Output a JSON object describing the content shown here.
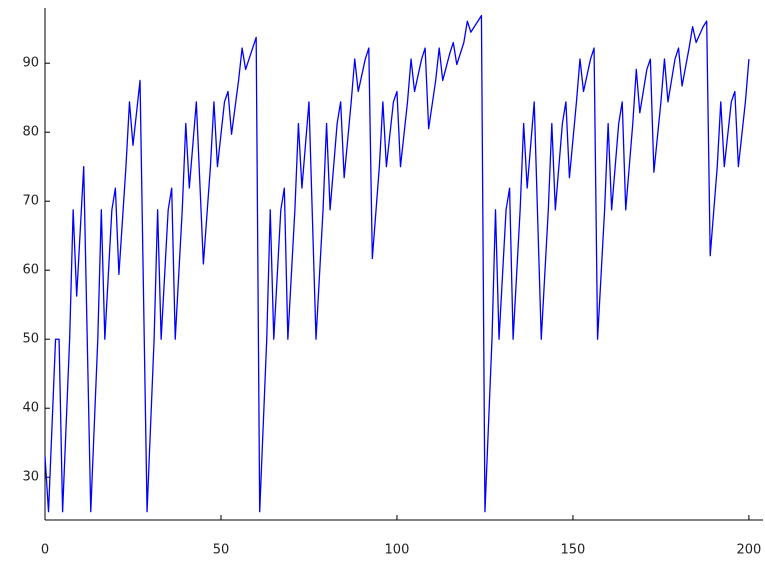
{
  "chart_data": {
    "type": "line",
    "x": [
      0,
      1,
      3,
      4,
      5,
      7,
      8,
      9,
      11,
      13,
      15,
      16,
      17,
      19,
      20,
      21,
      23,
      24,
      25,
      27,
      29,
      31,
      32,
      33,
      35,
      36,
      37,
      39,
      40,
      41,
      43,
      45,
      47,
      48,
      49,
      51,
      52,
      53,
      55,
      56,
      57,
      59,
      60,
      61,
      63,
      64,
      65,
      67,
      68,
      69,
      71,
      72,
      73,
      75,
      77,
      79,
      80,
      81,
      83,
      84,
      85,
      87,
      88,
      89,
      91,
      92,
      93,
      95,
      96,
      97,
      99,
      100,
      101,
      103,
      104,
      105,
      107,
      108,
      109,
      111,
      112,
      113,
      115,
      116,
      117,
      119,
      120,
      121,
      123,
      124,
      125,
      127,
      128,
      129,
      131,
      132,
      133,
      135,
      136,
      137,
      139,
      141,
      143,
      144,
      145,
      147,
      148,
      149,
      151,
      152,
      153,
      155,
      156,
      157,
      159,
      160,
      161,
      163,
      164,
      165,
      167,
      168,
      169,
      171,
      172,
      173,
      175,
      176,
      177,
      179,
      180,
      181,
      183,
      184,
      185,
      187,
      188,
      189,
      191,
      192,
      193,
      195,
      196,
      197,
      199,
      200
    ],
    "series": [
      {
        "color": "#0000ff",
        "values": [
          33,
          25,
          50,
          50,
          25,
          50,
          68.75,
          56.25,
          75,
          25,
          50,
          68.75,
          50,
          68.75,
          71.9,
          59.4,
          75,
          84.4,
          78.1,
          87.5,
          25,
          50,
          68.75,
          50,
          68.75,
          71.9,
          50,
          68.75,
          81.25,
          71.9,
          84.4,
          60.9,
          75,
          84.4,
          75,
          84.4,
          85.9,
          79.7,
          87.5,
          92.2,
          89.1,
          92.2,
          93.75,
          25,
          50,
          68.75,
          50,
          68.75,
          71.9,
          50,
          68.75,
          81.25,
          71.9,
          84.4,
          50,
          68.75,
          81.25,
          68.75,
          81.25,
          84.4,
          73.4,
          84.4,
          90.6,
          85.9,
          90.6,
          92.2,
          61.7,
          75,
          84.4,
          75,
          84.4,
          85.9,
          75,
          84.4,
          90.6,
          85.9,
          90.6,
          92.2,
          80.5,
          87.5,
          92.2,
          87.5,
          91.4,
          93,
          89.8,
          93,
          96.1,
          94.5,
          96.1,
          96.9,
          25,
          50,
          68.75,
          50,
          68.75,
          71.9,
          50,
          68.75,
          81.25,
          71.9,
          84.4,
          50,
          68.75,
          81.25,
          68.75,
          81.25,
          84.4,
          73.4,
          84.4,
          90.6,
          85.9,
          90.6,
          92.2,
          50,
          68.75,
          81.25,
          68.75,
          81.25,
          84.4,
          68.75,
          81.25,
          89.1,
          82.8,
          89.1,
          90.6,
          74.2,
          84.4,
          90.6,
          84.4,
          90.6,
          92.2,
          86.7,
          92.2,
          95.3,
          93,
          95.3,
          96.1,
          62.1,
          75,
          84.4,
          75,
          84.4,
          85.9,
          75,
          84.4,
          90.6
        ]
      }
    ],
    "xlim": [
      0,
      204
    ],
    "ylim": [
      23.8,
      98
    ],
    "xticks": [
      0,
      50,
      100,
      150,
      200
    ],
    "yticks": [
      30,
      40,
      50,
      60,
      70,
      80,
      90
    ]
  }
}
